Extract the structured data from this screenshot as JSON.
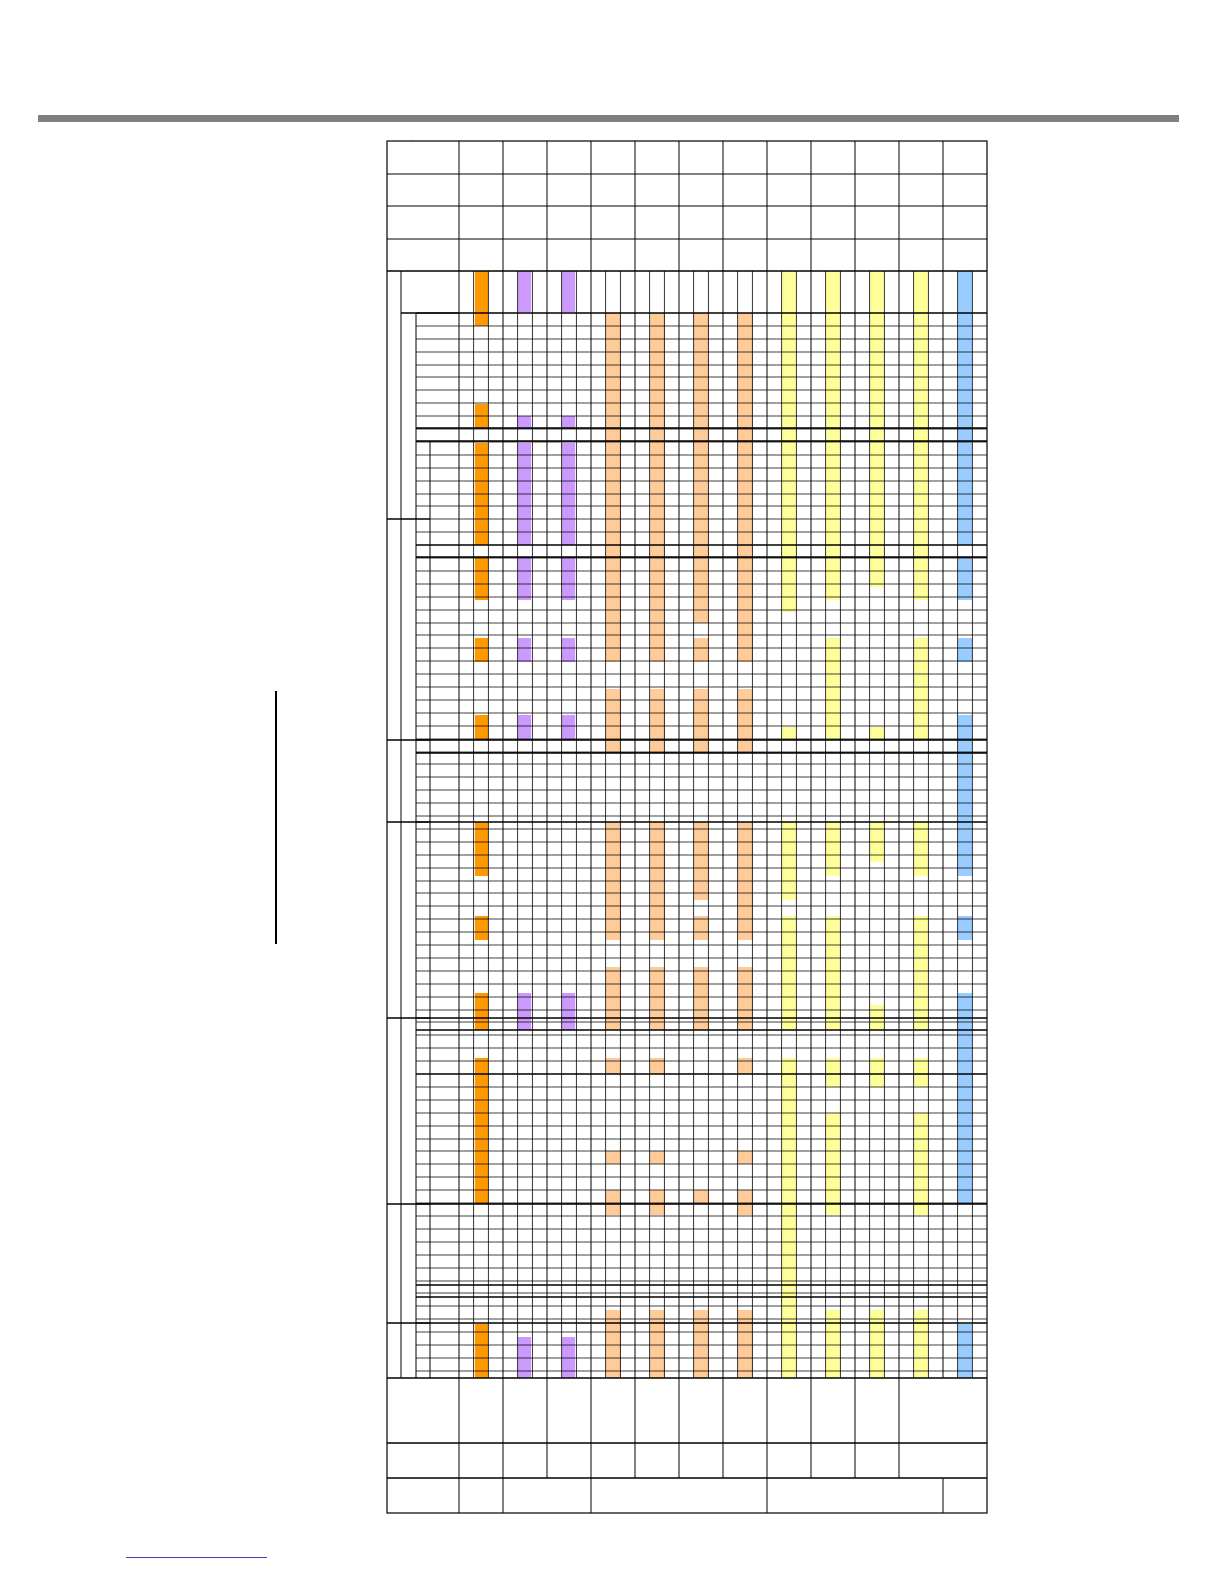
{
  "page": {
    "corner_mark": "”",
    "colors": {
      "orange": "#FF9900",
      "purple": "#CC99FF",
      "peach": "#FFCC99",
      "yellow": "#FFFF99",
      "blue": "#99CCFF",
      "rule_gray": "#808080",
      "grid_line": "#000000"
    }
  }
}
